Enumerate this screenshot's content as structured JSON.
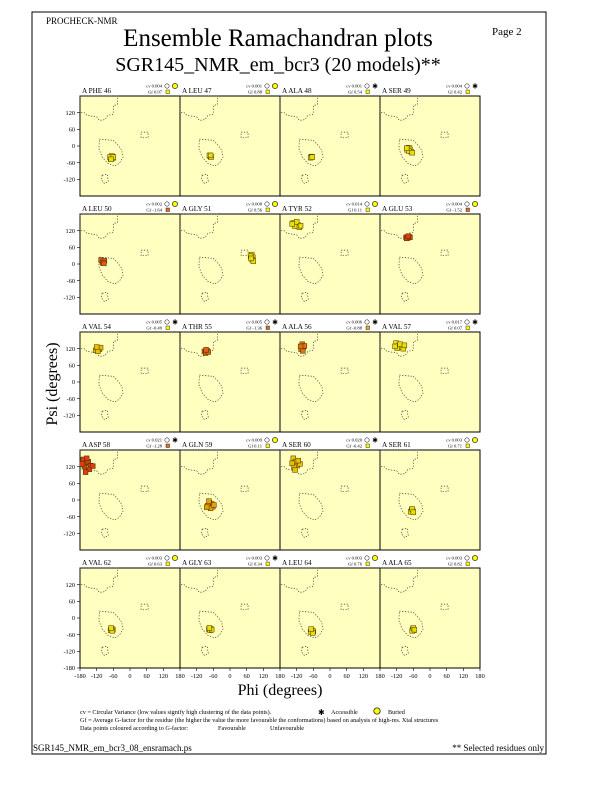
{
  "header": {
    "program": "PROCHECK-NMR",
    "page": "Page  2",
    "title": "Ensemble Ramachandran plots",
    "subtitle": "SGR145_NMR_em_bcr3 (20 models)**"
  },
  "chart_data": {
    "type": "scatter",
    "title": "Ensemble Ramachandran plots",
    "subtitle": "SGR145_NMR_em_bcr3 (20 models)**",
    "xlabel": "Phi (degrees)",
    "ylabel": "Psi (degrees)",
    "xlim": [
      -180,
      180
    ],
    "ylim": [
      -180,
      180
    ],
    "x_ticks": [
      "-180",
      "-120",
      "-60",
      "0",
      "60",
      "120",
      "180"
    ],
    "y_ticks": [
      "120",
      "60",
      "0",
      "-60",
      "-120",
      "-180"
    ],
    "grid": false,
    "background": "#ffffc0",
    "panels": [
      {
        "residue": "A PHE 46",
        "cv": "cv 0.004",
        "gf": "Gf 0.97",
        "buried": true,
        "gf_color": "#ffff00",
        "points": [
          [
            -68,
            -42
          ],
          [
            -64,
            -38
          ],
          [
            -70,
            -46
          ],
          [
            -62,
            -44
          ],
          [
            -66,
            -36
          ],
          [
            -72,
            -40
          ],
          [
            -60,
            -40
          ],
          [
            -68,
            -48
          ]
        ],
        "point_color": "#e8e000"
      },
      {
        "residue": "A LEU 47",
        "cv": "cv 0.001",
        "gf": "Gf 0.88",
        "buried": true,
        "gf_color": "#ffff00",
        "points": [
          [
            -72,
            -36
          ],
          [
            -70,
            -38
          ],
          [
            -74,
            -34
          ],
          [
            -68,
            -40
          ],
          [
            -70,
            -34
          ]
        ],
        "point_color": "#e8e000"
      },
      {
        "residue": "A ALA 48",
        "cv": "cv 0.001",
        "gf": "Gf 0.54",
        "buried": false,
        "gf_color": "#ffff00",
        "points": [
          [
            -68,
            -40
          ],
          [
            -66,
            -38
          ],
          [
            -70,
            -42
          ],
          [
            -64,
            -40
          ]
        ],
        "point_color": "#e8e000"
      },
      {
        "residue": "A SER 49",
        "cv": "cv 0.004",
        "gf": "Gf 0.42",
        "buried": false,
        "gf_color": "#ffff00",
        "points": [
          [
            -80,
            -10
          ],
          [
            -76,
            -6
          ],
          [
            -82,
            -14
          ],
          [
            -72,
            -12
          ],
          [
            -68,
            -20
          ],
          [
            -76,
            -18
          ],
          [
            -64,
            -24
          ],
          [
            -84,
            -8
          ]
        ],
        "point_color": "#e8e000"
      },
      {
        "residue": "A LEU 50",
        "cv": "cv 0.002",
        "gf": "Gf -1.64",
        "buried": true,
        "gf_color": "#e07020",
        "points": [
          [
            -100,
            10
          ],
          [
            -96,
            6
          ],
          [
            -104,
            14
          ],
          [
            -92,
            12
          ],
          [
            -98,
            4
          ],
          [
            -94,
            2
          ]
        ],
        "point_color": "#e05a14"
      },
      {
        "residue": "A GLY 51",
        "cv": "cv 0.008",
        "gf": "Gf 0.56",
        "buried": true,
        "gf_color": "#ffff00",
        "points": [
          [
            78,
            34
          ],
          [
            82,
            24
          ],
          [
            74,
            28
          ],
          [
            80,
            16
          ],
          [
            84,
            10
          ],
          [
            76,
            20
          ]
        ],
        "point_color": "#e8e000"
      },
      {
        "residue": "A TYR 52",
        "cv": "cv 0.014",
        "gf": "Gf 0.11",
        "buried": true,
        "gf_color": "#ffff00",
        "points": [
          [
            -132,
            148
          ],
          [
            -122,
            142
          ],
          [
            -114,
            140
          ],
          [
            -126,
            136
          ],
          [
            -110,
            132
          ],
          [
            -120,
            152
          ],
          [
            -136,
            144
          ],
          [
            -106,
            138
          ]
        ],
        "point_color": "#e8e000"
      },
      {
        "residue": "A GLU 53",
        "cv": "cv 0.004",
        "gf": "Gf -1.52",
        "buried": true,
        "gf_color": "#e07020",
        "points": [
          [
            -86,
            96
          ],
          [
            -80,
            94
          ],
          [
            -76,
            98
          ],
          [
            -84,
            92
          ],
          [
            -72,
            96
          ],
          [
            -78,
            100
          ]
        ],
        "point_color": "#d84010"
      },
      {
        "residue": "A VAL 54",
        "cv": "cv 0.005",
        "gf": "Gf -0.49",
        "buried": false,
        "gf_color": "#ffff00",
        "points": [
          [
            -118,
            122
          ],
          [
            -110,
            118
          ],
          [
            -124,
            114
          ],
          [
            -106,
            124
          ],
          [
            -116,
            110
          ],
          [
            -120,
            126
          ]
        ],
        "point_color": "#e8c000"
      },
      {
        "residue": "A THR 55",
        "cv": "cv 0.005",
        "gf": "Gf -1.36",
        "buried": false,
        "gf_color": "#e07020",
        "points": [
          [
            -92,
            110
          ],
          [
            -82,
            112
          ],
          [
            -88,
            104
          ],
          [
            -78,
            108
          ],
          [
            -86,
            116
          ]
        ],
        "point_color": "#d86010"
      },
      {
        "residue": "A ALA 56",
        "cv": "cv 0.006",
        "gf": "Gf -0.88",
        "buried": false,
        "gf_color": "#e8b000",
        "points": [
          [
            -100,
            136
          ],
          [
            -96,
            126
          ],
          [
            -104,
            118
          ],
          [
            -92,
            130
          ],
          [
            -98,
            112
          ],
          [
            -106,
            128
          ]
        ],
        "point_color": "#e07010"
      },
      {
        "residue": "A VAL 57",
        "cv": "cv 0.017",
        "gf": "Gf 0.07",
        "buried": false,
        "gf_color": "#ffff00",
        "points": [
          [
            -122,
            140
          ],
          [
            -112,
            130
          ],
          [
            -102,
            126
          ],
          [
            -118,
            122
          ],
          [
            -96,
            120
          ],
          [
            -108,
            136
          ],
          [
            -126,
            128
          ],
          [
            -92,
            132
          ]
        ],
        "point_color": "#e8e000"
      },
      {
        "residue": "A ASP 58",
        "cv": "cv 0.021",
        "gf": "Gf -1.28",
        "buried": false,
        "gf_color": "#e07020",
        "points": [
          [
            -168,
            146
          ],
          [
            -160,
            132
          ],
          [
            -150,
            138
          ],
          [
            -164,
            120
          ],
          [
            -142,
            124
          ],
          [
            -156,
            150
          ],
          [
            -172,
            130
          ],
          [
            -146,
            110
          ],
          [
            -134,
            122
          ],
          [
            -160,
            100
          ]
        ],
        "point_color": "#d84010"
      },
      {
        "residue": "A GLN 59",
        "cv": "cv 0.009",
        "gf": "Gf 0.11",
        "buried": true,
        "gf_color": "#ffff00",
        "points": [
          [
            -74,
            -10
          ],
          [
            -66,
            -14
          ],
          [
            -80,
            -20
          ],
          [
            -62,
            -24
          ],
          [
            -70,
            -30
          ],
          [
            -84,
            -26
          ],
          [
            -58,
            -18
          ],
          [
            -76,
            -4
          ]
        ],
        "point_color": "#e8a000"
      },
      {
        "residue": "A SER 60",
        "cv": "cv 0.020",
        "gf": "Gf -0.42",
        "buried": false,
        "gf_color": "#ffff00",
        "points": [
          [
            -132,
            150
          ],
          [
            -124,
            138
          ],
          [
            -118,
            124
          ],
          [
            -130,
            120
          ],
          [
            -108,
            130
          ],
          [
            -126,
            108
          ],
          [
            -114,
            142
          ],
          [
            -136,
            132
          ]
        ],
        "point_color": "#e8c000"
      },
      {
        "residue": "A SER 61",
        "cv": "cv 0.003",
        "gf": "Gf 0.71",
        "buried": true,
        "gf_color": "#ffff00",
        "points": [
          [
            -66,
            -36
          ],
          [
            -62,
            -40
          ],
          [
            -70,
            -42
          ],
          [
            -64,
            -32
          ],
          [
            -60,
            -44
          ]
        ],
        "point_color": "#e8e000"
      },
      {
        "residue": "A VAL 62",
        "cv": "cv 0.003",
        "gf": "Gf 0.63",
        "buried": true,
        "gf_color": "#ffff00",
        "points": [
          [
            -66,
            -38
          ],
          [
            -62,
            -42
          ],
          [
            -70,
            -44
          ],
          [
            -64,
            -46
          ],
          [
            -68,
            -36
          ]
        ],
        "point_color": "#e8e000"
      },
      {
        "residue": "A GLY 63",
        "cv": "cv 0.003",
        "gf": "Gf 0.34",
        "buried": false,
        "gf_color": "#ffff00",
        "points": [
          [
            -76,
            -40
          ],
          [
            -70,
            -38
          ],
          [
            -72,
            -44
          ],
          [
            -66,
            -42
          ],
          [
            -74,
            -36
          ]
        ],
        "point_color": "#e8e000"
      },
      {
        "residue": "A LEU 64",
        "cv": "cv 0.003",
        "gf": "Gf 0.76",
        "buried": true,
        "gf_color": "#ffff00",
        "points": [
          [
            -66,
            -44
          ],
          [
            -60,
            -48
          ],
          [
            -70,
            -50
          ],
          [
            -62,
            -54
          ],
          [
            -68,
            -40
          ]
        ],
        "point_color": "#e8e000"
      },
      {
        "residue": "A ALA 65",
        "cv": "cv 0.003",
        "gf": "Gf 0.82",
        "buried": true,
        "gf_color": "#ffff00",
        "points": [
          [
            -62,
            -40
          ],
          [
            -58,
            -44
          ],
          [
            -64,
            -46
          ],
          [
            -60,
            -36
          ],
          [
            -56,
            -42
          ]
        ],
        "point_color": "#e8e000"
      }
    ]
  },
  "legend": {
    "cv_note": "cv = Circular Variance (low values signify high clustering of the data points).",
    "accessible": "Accessible",
    "buried": "Buried",
    "gf_note": "Gf = Average G-factor for the residue (the higher the value the more favourable the conformations) based on analysis of high-res. Xtal structures",
    "color_note": "Data points coloured according to G-factor:",
    "favourable": "Favourable",
    "unfavourable": "Unfavourable",
    "favourable_color": "#e8d000",
    "unfavourable_color": "#e03010"
  },
  "footer": {
    "filename": "SGR145_NMR_em_bcr3_08_ensramach.ps",
    "note": "** Selected residues only"
  }
}
